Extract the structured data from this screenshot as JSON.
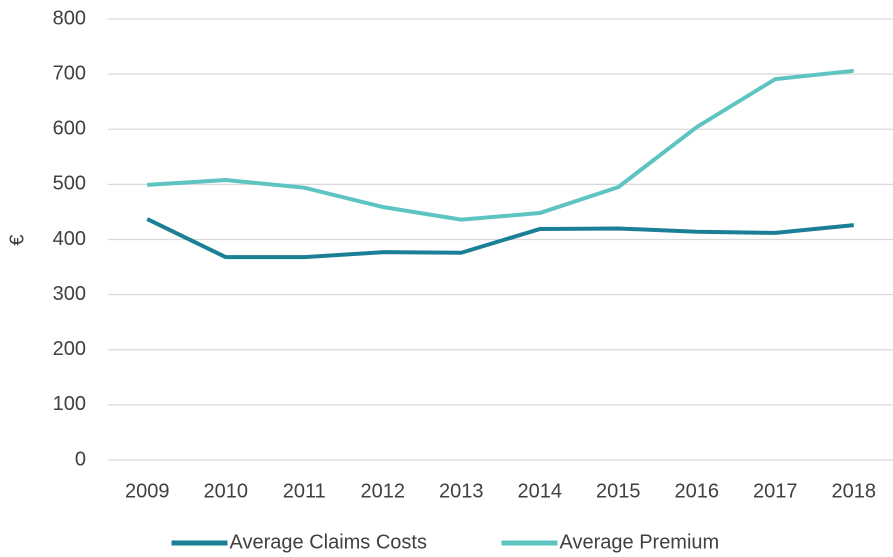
{
  "chart_data": {
    "type": "line",
    "y_label": "€",
    "categories": [
      "2009",
      "2010",
      "2011",
      "2012",
      "2013",
      "2014",
      "2015",
      "2016",
      "2017",
      "2018"
    ],
    "series": [
      {
        "name": "Average Claims Costs",
        "color": "#1b7f96",
        "values": [
          437,
          368,
          368,
          377,
          376,
          419,
          420,
          414,
          412,
          426
        ]
      },
      {
        "name": "Average Premium",
        "color": "#5ec4c1",
        "values": [
          499,
          508,
          494,
          459,
          436,
          448,
          495,
          604,
          691,
          706
        ]
      }
    ],
    "ylim": [
      0,
      800
    ],
    "yticks": [
      0,
      100,
      200,
      300,
      400,
      500,
      600,
      700,
      800
    ],
    "grid": true,
    "legend": "bottom"
  }
}
